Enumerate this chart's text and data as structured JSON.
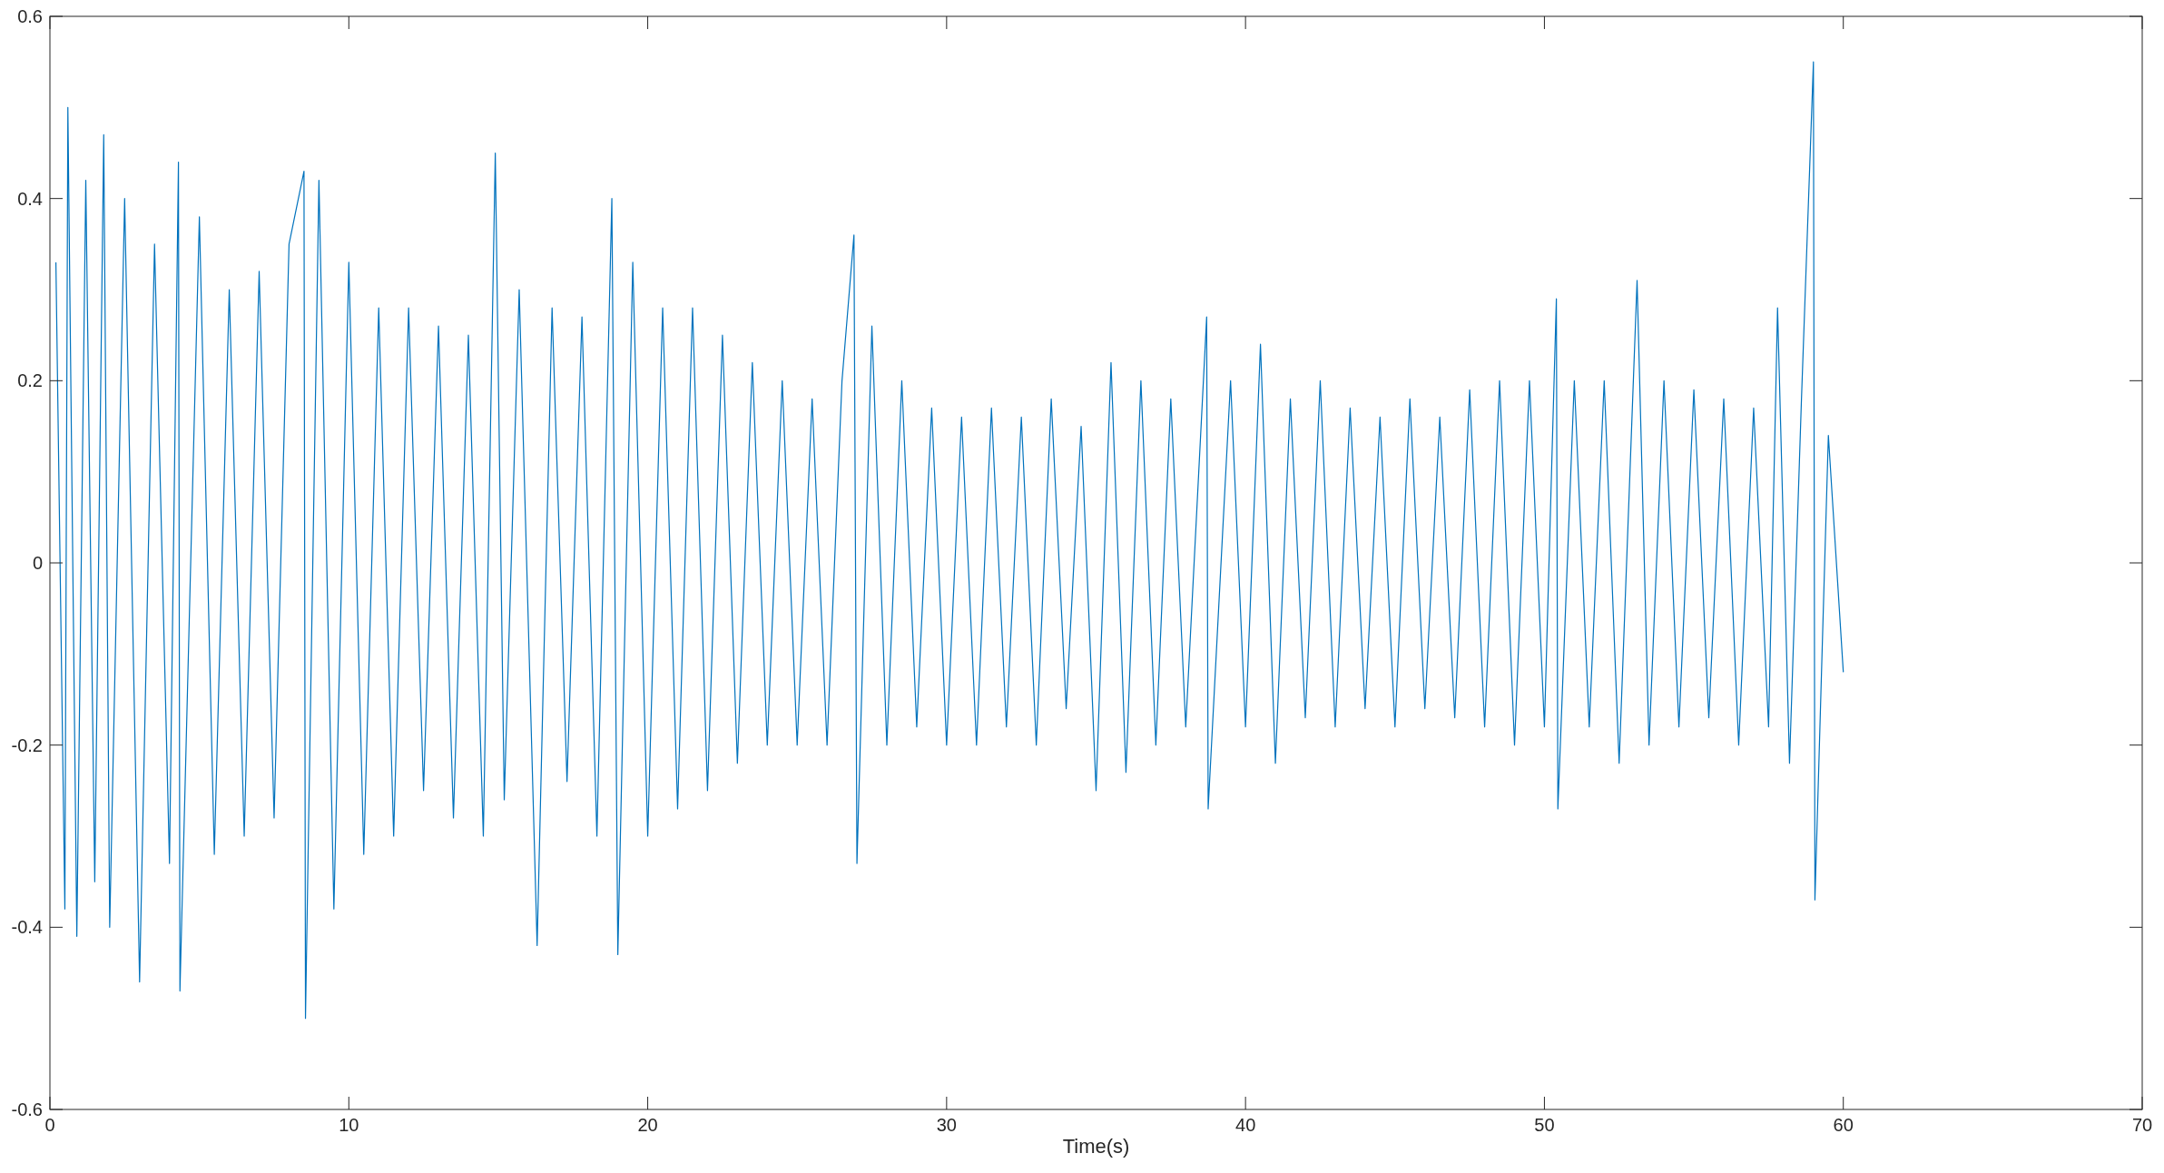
{
  "chart_data": {
    "type": "line",
    "xlabel": "Time(s)",
    "xlim": [
      0,
      70
    ],
    "xticks": [
      0,
      10,
      20,
      30,
      40,
      50,
      60,
      70
    ],
    "ylim": [
      -0.6,
      0.6
    ],
    "yticks": [
      -0.6,
      -0.4,
      -0.2,
      0,
      0.2,
      0.4,
      0.6
    ],
    "grid": false,
    "marker": "none",
    "line_style": "solid",
    "series": [
      {
        "color": "#0072bd",
        "x": [
          0.2,
          0.5,
          0.6,
          0.9,
          1.2,
          1.5,
          1.8,
          2.0,
          2.5,
          3.0,
          3.5,
          4.0,
          4.3,
          4.35,
          5.0,
          5.5,
          6.0,
          6.5,
          7.0,
          7.5,
          8.0,
          8.5,
          8.55,
          9.0,
          9.5,
          10.0,
          10.5,
          11.0,
          11.5,
          12.0,
          12.5,
          13.0,
          13.5,
          14.0,
          14.5,
          14.9,
          15.2,
          15.7,
          16.3,
          16.8,
          17.3,
          17.8,
          18.3,
          18.8,
          19.0,
          19.5,
          20.0,
          20.5,
          21.0,
          21.5,
          22.0,
          22.5,
          23.0,
          23.5,
          24.0,
          24.5,
          25.0,
          25.5,
          26.0,
          26.5,
          26.9,
          27.0,
          27.5,
          28.0,
          28.5,
          29.0,
          29.5,
          30.0,
          30.5,
          31.0,
          31.5,
          32.0,
          32.5,
          33.0,
          33.5,
          34.0,
          34.5,
          35.0,
          35.5,
          36.0,
          36.5,
          37.0,
          37.5,
          38.0,
          38.7,
          38.75,
          39.5,
          40.0,
          40.5,
          41.0,
          41.5,
          42.0,
          42.5,
          43.0,
          43.5,
          44.0,
          44.5,
          45.0,
          45.5,
          46.0,
          46.5,
          47.0,
          47.5,
          48.0,
          48.5,
          49.0,
          49.5,
          50.0,
          50.4,
          50.45,
          51.0,
          51.5,
          52.0,
          52.5,
          53.1,
          53.5,
          54.0,
          54.5,
          55.0,
          55.5,
          56.0,
          56.5,
          57.0,
          57.5,
          57.8,
          58.2,
          58.6,
          59.0,
          59.05,
          59.5,
          60.0
        ],
        "values": [
          0.33,
          -0.38,
          0.5,
          -0.41,
          0.42,
          -0.35,
          0.47,
          -0.4,
          0.4,
          -0.46,
          0.35,
          -0.33,
          0.44,
          -0.47,
          0.38,
          -0.32,
          0.3,
          -0.3,
          0.32,
          -0.28,
          0.35,
          0.43,
          -0.5,
          0.42,
          -0.38,
          0.33,
          -0.32,
          0.28,
          -0.3,
          0.28,
          -0.25,
          0.26,
          -0.28,
          0.25,
          -0.3,
          0.45,
          -0.26,
          0.3,
          -0.42,
          0.28,
          -0.24,
          0.27,
          -0.3,
          0.4,
          -0.43,
          0.33,
          -0.3,
          0.28,
          -0.27,
          0.28,
          -0.25,
          0.25,
          -0.22,
          0.22,
          -0.2,
          0.2,
          -0.2,
          0.18,
          -0.2,
          0.2,
          0.36,
          -0.33,
          0.26,
          -0.2,
          0.2,
          -0.18,
          0.17,
          -0.2,
          0.16,
          -0.2,
          0.17,
          -0.18,
          0.16,
          -0.2,
          0.18,
          -0.16,
          0.15,
          -0.25,
          0.22,
          -0.23,
          0.2,
          -0.2,
          0.18,
          -0.18,
          0.27,
          -0.27,
          0.2,
          -0.18,
          0.24,
          -0.22,
          0.18,
          -0.17,
          0.2,
          -0.18,
          0.17,
          -0.16,
          0.16,
          -0.18,
          0.18,
          -0.16,
          0.16,
          -0.17,
          0.19,
          -0.18,
          0.2,
          -0.2,
          0.2,
          -0.18,
          0.29,
          -0.27,
          0.2,
          -0.18,
          0.2,
          -0.22,
          0.31,
          -0.2,
          0.2,
          -0.18,
          0.19,
          -0.17,
          0.18,
          -0.2,
          0.17,
          -0.18,
          0.28,
          -0.22,
          0.18,
          0.55,
          -0.37,
          0.14,
          -0.12
        ]
      }
    ]
  }
}
